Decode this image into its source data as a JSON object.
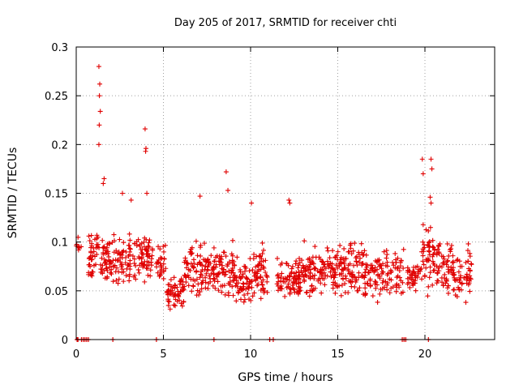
{
  "chart_data": {
    "type": "scatter",
    "title": "Day 205 of 2017, SRMTID for receiver chti",
    "xlabel": "GPS time / hours",
    "ylabel": "SRMTID / TECUs",
    "xlim": [
      0,
      24
    ],
    "ylim": [
      0,
      0.3
    ],
    "x_ticks": [
      0,
      5,
      10,
      15,
      20
    ],
    "x_tick_labels": [
      "0",
      "5",
      "10",
      "15",
      "20"
    ],
    "y_ticks": [
      0,
      0.05,
      0.1,
      0.15,
      0.2,
      0.25,
      0.3
    ],
    "y_tick_labels": [
      "0",
      "0.05",
      "0.1",
      "0.15",
      "0.2",
      "0.25",
      "0.3"
    ],
    "grid": true,
    "marker": "+",
    "series_color": "#e00000",
    "peaks": [
      {
        "x": 1.3,
        "y": 0.28
      },
      {
        "x": 1.35,
        "y": 0.262
      },
      {
        "x": 1.33,
        "y": 0.25
      },
      {
        "x": 1.38,
        "y": 0.234
      },
      {
        "x": 1.32,
        "y": 0.22
      },
      {
        "x": 1.3,
        "y": 0.2
      },
      {
        "x": 1.6,
        "y": 0.165
      },
      {
        "x": 1.55,
        "y": 0.16
      },
      {
        "x": 3.95,
        "y": 0.216
      },
      {
        "x": 4.0,
        "y": 0.196
      },
      {
        "x": 3.98,
        "y": 0.193
      },
      {
        "x": 4.05,
        "y": 0.15
      },
      {
        "x": 8.6,
        "y": 0.172
      },
      {
        "x": 8.7,
        "y": 0.153
      },
      {
        "x": 3.15,
        "y": 0.143
      },
      {
        "x": 12.2,
        "y": 0.143
      },
      {
        "x": 12.25,
        "y": 0.14
      },
      {
        "x": 19.85,
        "y": 0.185
      },
      {
        "x": 19.9,
        "y": 0.17
      },
      {
        "x": 20.35,
        "y": 0.185
      },
      {
        "x": 20.4,
        "y": 0.175
      },
      {
        "x": 20.3,
        "y": 0.146
      },
      {
        "x": 20.35,
        "y": 0.14
      },
      {
        "x": 2.65,
        "y": 0.15
      },
      {
        "x": 7.1,
        "y": 0.147
      },
      {
        "x": 10.05,
        "y": 0.14
      }
    ],
    "zero_points_x": [
      0.05,
      0.1,
      0.3,
      0.4,
      0.5,
      0.6,
      0.7,
      2.1,
      4.6,
      7.9,
      11.1,
      11.3,
      18.7,
      18.8,
      18.9,
      20.2
    ],
    "activity_segments": [
      {
        "from": 0.0,
        "to": 0.3,
        "center": 0.096,
        "spread": 0.014,
        "count": 8
      },
      {
        "from": 0.7,
        "to": 1.8,
        "center": 0.085,
        "spread": 0.04,
        "count": 70
      },
      {
        "from": 1.8,
        "to": 3.2,
        "center": 0.082,
        "spread": 0.033,
        "count": 80
      },
      {
        "from": 3.2,
        "to": 4.4,
        "center": 0.085,
        "spread": 0.035,
        "count": 70
      },
      {
        "from": 4.6,
        "to": 5.2,
        "center": 0.08,
        "spread": 0.03,
        "count": 30
      },
      {
        "from": 5.2,
        "to": 6.2,
        "center": 0.05,
        "spread": 0.025,
        "count": 60
      },
      {
        "from": 6.2,
        "to": 8.0,
        "center": 0.072,
        "spread": 0.035,
        "count": 110
      },
      {
        "from": 8.0,
        "to": 9.0,
        "center": 0.07,
        "spread": 0.04,
        "count": 60
      },
      {
        "from": 9.0,
        "to": 10.0,
        "center": 0.06,
        "spread": 0.035,
        "count": 60
      },
      {
        "from": 10.0,
        "to": 11.0,
        "center": 0.07,
        "spread": 0.04,
        "count": 60
      },
      {
        "from": 11.5,
        "to": 13.0,
        "center": 0.063,
        "spread": 0.03,
        "count": 90
      },
      {
        "from": 13.0,
        "to": 15.0,
        "center": 0.07,
        "spread": 0.035,
        "count": 120
      },
      {
        "from": 15.0,
        "to": 16.5,
        "center": 0.072,
        "spread": 0.035,
        "count": 90
      },
      {
        "from": 16.5,
        "to": 18.8,
        "center": 0.065,
        "spread": 0.035,
        "count": 120
      },
      {
        "from": 19.0,
        "to": 19.8,
        "center": 0.065,
        "spread": 0.02,
        "count": 40
      },
      {
        "from": 19.8,
        "to": 20.6,
        "center": 0.085,
        "spread": 0.045,
        "count": 50
      },
      {
        "from": 20.6,
        "to": 21.6,
        "center": 0.075,
        "spread": 0.04,
        "count": 60
      },
      {
        "from": 21.6,
        "to": 22.7,
        "center": 0.068,
        "spread": 0.035,
        "count": 60
      }
    ]
  }
}
